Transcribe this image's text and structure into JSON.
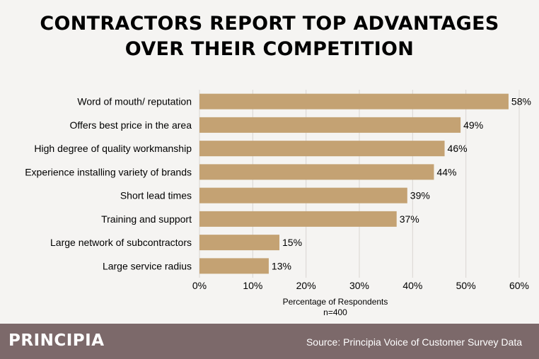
{
  "title_lines": [
    "CONTRACTORS REPORT TOP ADVANTAGES",
    "OVER THEIR COMPETITION"
  ],
  "footer": {
    "brand": "PRINCIPIA",
    "source": "Source: Principia Voice of Customer Survey Data"
  },
  "colors": {
    "bar": "#c4a273",
    "background": "#f5f4f2",
    "footer": "#7c696a",
    "grid": "#d9d6d3"
  },
  "chart_data": {
    "type": "bar",
    "orientation": "horizontal",
    "title": "CONTRACTORS REPORT TOP ADVANTAGES OVER THEIR COMPETITION",
    "categories": [
      "Word of mouth/ reputation",
      "Offers best price in the area",
      "High degree of quality workmanship",
      "Experience installing variety of brands",
      "Short lead times",
      "Training and support",
      "Large network of subcontractors",
      "Large service radius"
    ],
    "values": [
      58,
      49,
      46,
      44,
      39,
      37,
      15,
      13
    ],
    "value_labels": [
      "58%",
      "49%",
      "46%",
      "44%",
      "39%",
      "37%",
      "15%",
      "13%"
    ],
    "xlabel": "Percentage of Respondents",
    "xlabel_note": "n=400",
    "xlim": [
      0,
      60
    ],
    "x_ticks": [
      0,
      10,
      20,
      30,
      40,
      50,
      60
    ],
    "x_tick_labels": [
      "0%",
      "10%",
      "20%",
      "30%",
      "40%",
      "50%",
      "60%"
    ],
    "grid": true
  }
}
